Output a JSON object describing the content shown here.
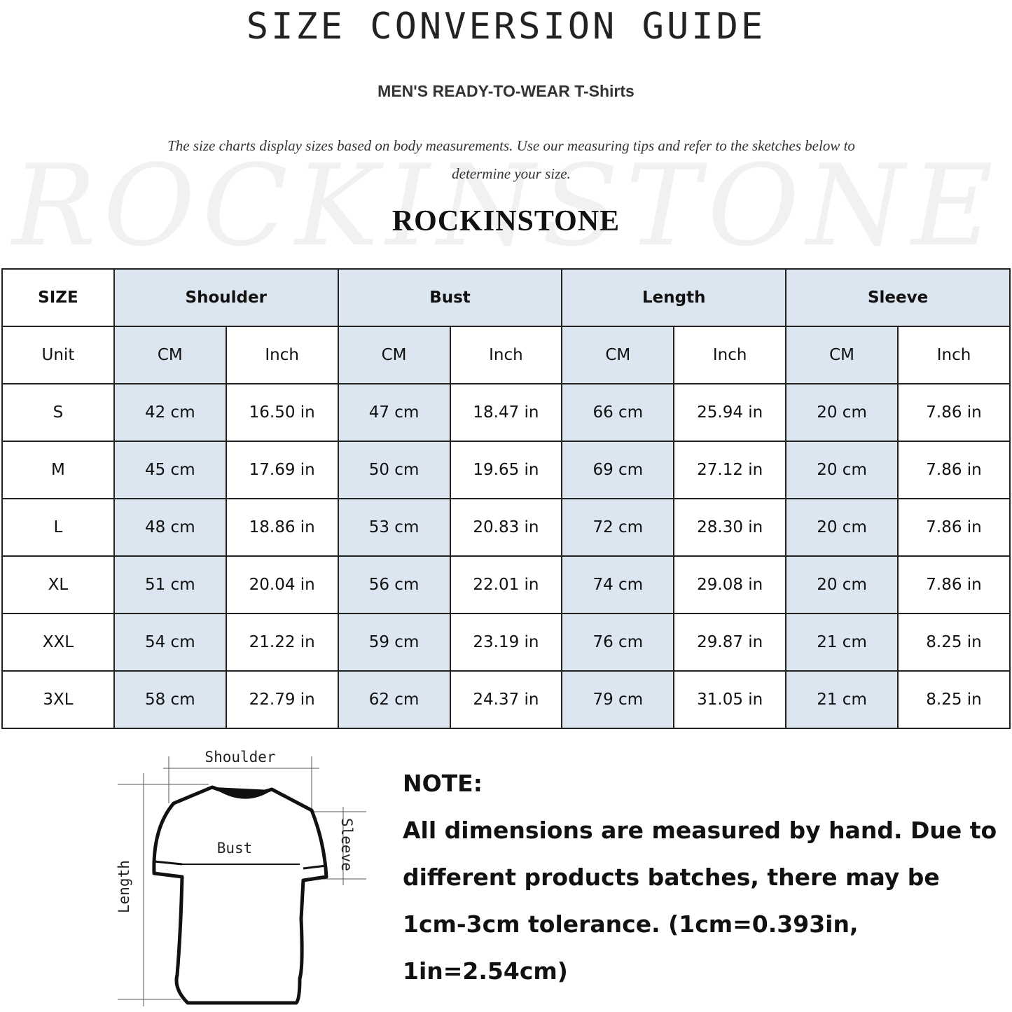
{
  "title": "SIZE CONVERSION GUIDE",
  "subtitle": "MEN'S READY-TO-WEAR T-Shirts",
  "description": "The size charts display sizes based on body measurements. Use our measuring tips and refer to the sketches below to determine your size.",
  "watermark": "ROCKINSTONE",
  "brand": "ROCKINSTONE",
  "colors": {
    "header_fill": "#dce6f1",
    "border": "#222222"
  },
  "table": {
    "size_header": "SIZE",
    "groups": [
      "Shoulder",
      "Bust",
      "Length",
      "Sleeve"
    ],
    "unit_label": "Unit",
    "units": [
      "CM",
      "Inch",
      "CM",
      "Inch",
      "CM",
      "Inch",
      "CM",
      "Inch"
    ],
    "rows": [
      {
        "size": "S",
        "values": [
          "42 cm",
          "16.50 in",
          "47 cm",
          "18.47 in",
          "66 cm",
          "25.94 in",
          "20 cm",
          "7.86 in"
        ]
      },
      {
        "size": "M",
        "values": [
          "45 cm",
          "17.69 in",
          "50 cm",
          "19.65 in",
          "69 cm",
          "27.12 in",
          "20 cm",
          "7.86 in"
        ]
      },
      {
        "size": "L",
        "values": [
          "48 cm",
          "18.86 in",
          "53 cm",
          "20.83 in",
          "72 cm",
          "28.30 in",
          "20 cm",
          "7.86 in"
        ]
      },
      {
        "size": "XL",
        "values": [
          "51 cm",
          "20.04 in",
          "56 cm",
          "22.01 in",
          "74 cm",
          "29.08 in",
          "20 cm",
          "7.86 in"
        ]
      },
      {
        "size": "XXL",
        "values": [
          "54 cm",
          "21.22 in",
          "59 cm",
          "23.19 in",
          "76 cm",
          "29.87 in",
          "21 cm",
          "8.25 in"
        ]
      },
      {
        "size": "3XL",
        "values": [
          "58 cm",
          "22.79 in",
          "62 cm",
          "24.37 in",
          "79 cm",
          "31.05 in",
          "21 cm",
          "8.25 in"
        ]
      }
    ]
  },
  "diagram": {
    "labels": {
      "shoulder": "Shoulder",
      "bust": "Bust",
      "sleeve": "Sleeve",
      "length": "Length"
    }
  },
  "note": {
    "heading": "NOTE:",
    "lines": [
      "All dimensions are measured by hand. Due to",
      "different products batches, there may be",
      "1cm-3cm tolerance. (1cm=0.393in, 1in=2.54cm)"
    ]
  }
}
